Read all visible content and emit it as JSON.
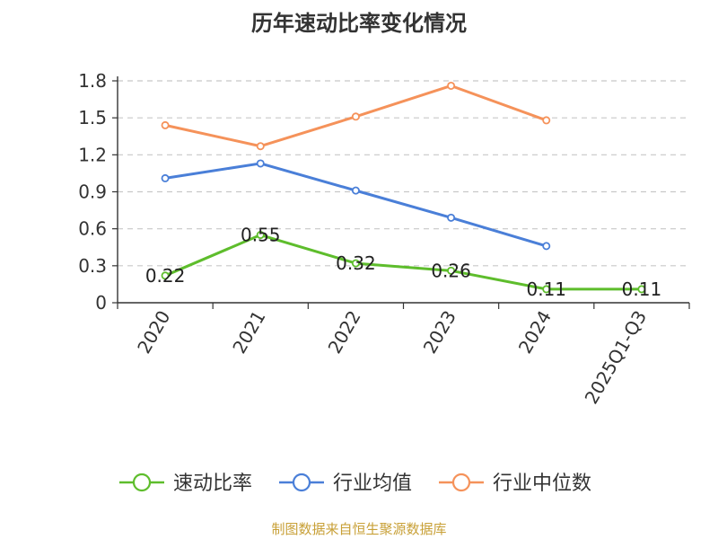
{
  "chart_data": {
    "type": "line",
    "title": "历年速动比率变化情况",
    "categories": [
      "2020",
      "2021",
      "2022",
      "2023",
      "2024",
      "2025Q1-Q3"
    ],
    "yticks": [
      "0",
      "0.3",
      "0.6",
      "0.9",
      "1.2",
      "1.5",
      "1.8"
    ],
    "ylim": [
      0,
      1.8
    ],
    "grid": true,
    "legend_position": "bottom",
    "series": [
      {
        "name": "速动比率",
        "color": "#5ebd2c",
        "values": [
          0.22,
          0.55,
          0.32,
          0.26,
          0.11,
          0.11
        ],
        "labels": [
          "0.22",
          "0.55",
          "0.32",
          "0.26",
          "0.11",
          "0.11"
        ]
      },
      {
        "name": "行业均值",
        "color": "#4a7fd8",
        "values": [
          1.01,
          1.13,
          0.91,
          0.69,
          0.46,
          null
        ]
      },
      {
        "name": "行业中位数",
        "color": "#f5925a",
        "values": [
          1.44,
          1.27,
          1.51,
          1.76,
          1.48,
          null
        ]
      }
    ]
  },
  "source": "制图数据来自恒生聚源数据库"
}
